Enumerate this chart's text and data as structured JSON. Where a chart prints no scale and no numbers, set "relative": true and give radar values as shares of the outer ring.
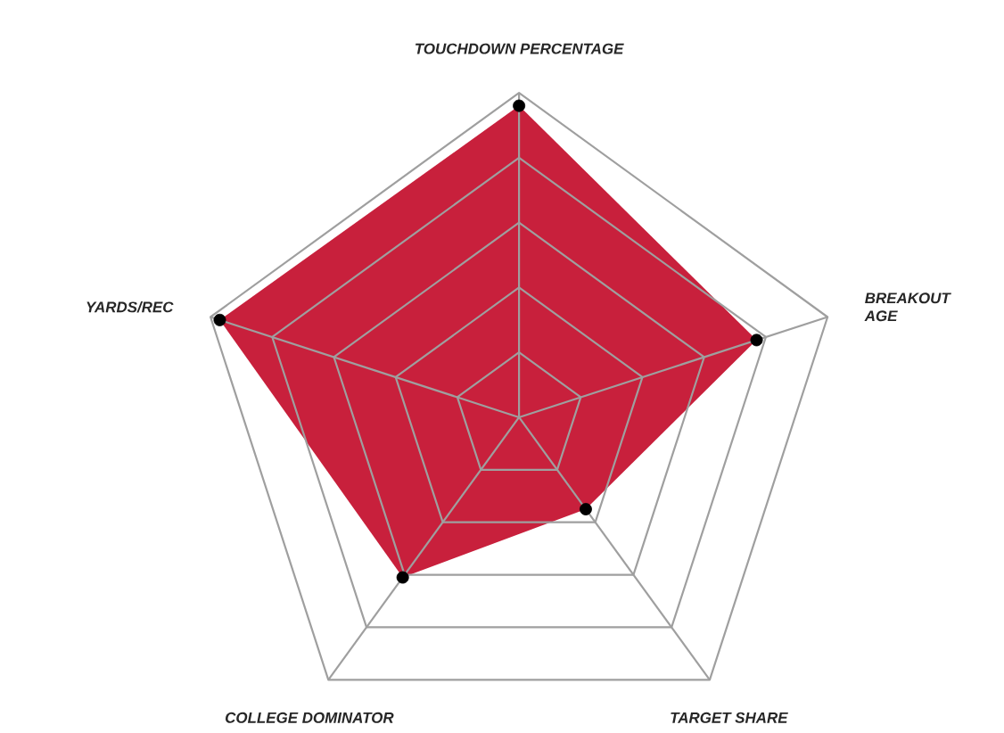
{
  "chart_data": {
    "type": "radar",
    "relative": true,
    "grid": true,
    "marker": "circle",
    "categories": [
      "TOUCHDOWN PERCENTAGE",
      "BREAKOUT AGE",
      "TARGET SHARE",
      "COLLEGE DOMINATOR",
      "YARDS/REC"
    ],
    "series": [
      {
        "color": "#c8203c",
        "values": [
          0.96,
          0.77,
          0.35,
          0.61,
          0.97
        ]
      }
    ]
  }
}
